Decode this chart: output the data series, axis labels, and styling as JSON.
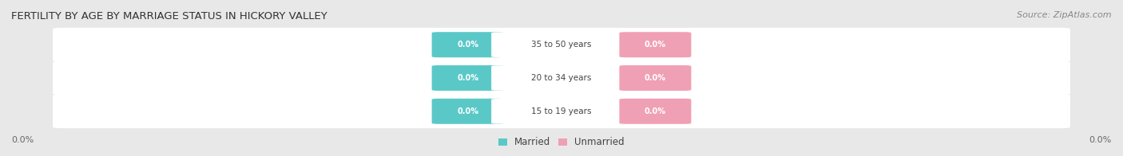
{
  "title": "FERTILITY BY AGE BY MARRIAGE STATUS IN HICKORY VALLEY",
  "source": "Source: ZipAtlas.com",
  "age_groups": [
    "15 to 19 years",
    "20 to 34 years",
    "35 to 50 years"
  ],
  "married_values": [
    0.0,
    0.0,
    0.0
  ],
  "unmarried_values": [
    0.0,
    0.0,
    0.0
  ],
  "married_color": "#5bc8c8",
  "unmarried_color": "#f0a0b4",
  "bar_bg_color": "#f0f0f0",
  "bar_fill_color": "#ffffff",
  "chart_bg_color": "#e8e8e8",
  "fig_bg_color": "#e8e8e8",
  "axis_label_left": "0.0%",
  "axis_label_right": "0.0%",
  "title_fontsize": 9.5,
  "source_fontsize": 8,
  "legend_married": "Married",
  "legend_unmarried": "Unmarried"
}
